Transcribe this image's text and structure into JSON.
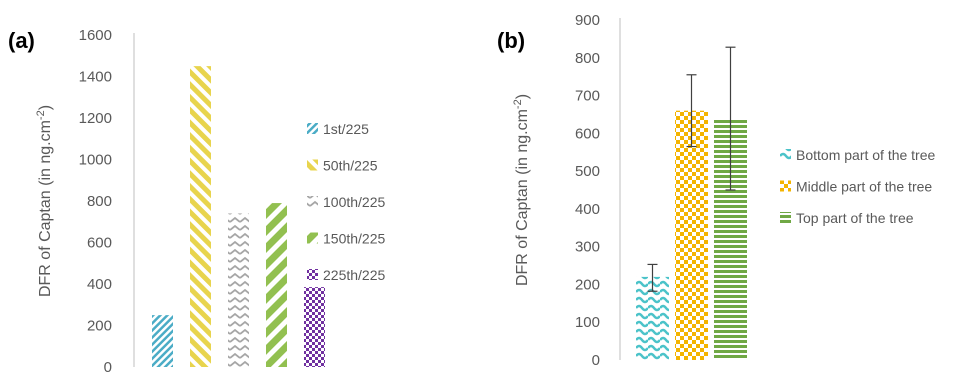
{
  "chart_data": [
    {
      "panel_label": "(a)",
      "type": "bar",
      "ylabel": "DFR of Captan (in ng.cm-2)",
      "ylim": [
        0,
        1600
      ],
      "yticks": [
        0,
        200,
        400,
        600,
        800,
        1000,
        1200,
        1400,
        1600
      ],
      "grid": false,
      "legend_position": "right",
      "series": [
        {
          "name": "1st/225",
          "value": 250,
          "color": "#4bacc6",
          "pattern": "diag-dense"
        },
        {
          "name": "50th/225",
          "value": 1450,
          "color": "#e8d44d",
          "pattern": "diag-wide"
        },
        {
          "name": "100th/225",
          "value": 740,
          "color": "#a6a6a6",
          "pattern": "zigzag"
        },
        {
          "name": "150th/225",
          "value": 790,
          "color": "#92c050",
          "pattern": "diag-bold"
        },
        {
          "name": "225th/225",
          "value": 385,
          "color": "#7030a0",
          "pattern": "dots"
        }
      ]
    },
    {
      "panel_label": "(b)",
      "type": "bar",
      "ylabel": "DFR of Captan (in ng.cm-2)",
      "ylim": [
        0,
        900
      ],
      "yticks": [
        0,
        100,
        200,
        300,
        400,
        500,
        600,
        700,
        800,
        900
      ],
      "grid": false,
      "legend_position": "right",
      "error_bars": true,
      "series": [
        {
          "name": "Bottom part of the tree",
          "value": 220,
          "error_low": 182,
          "error_high": 253,
          "color": "#4bc3c9",
          "pattern": "wave"
        },
        {
          "name": "Middle part of the tree",
          "value": 660,
          "error_low": 565,
          "error_high": 755,
          "color": "#f4b400",
          "pattern": "checker"
        },
        {
          "name": "Top part of the tree",
          "value": 640,
          "error_low": 450,
          "error_high": 828,
          "color": "#70a845",
          "pattern": "hstripes"
        }
      ]
    }
  ]
}
